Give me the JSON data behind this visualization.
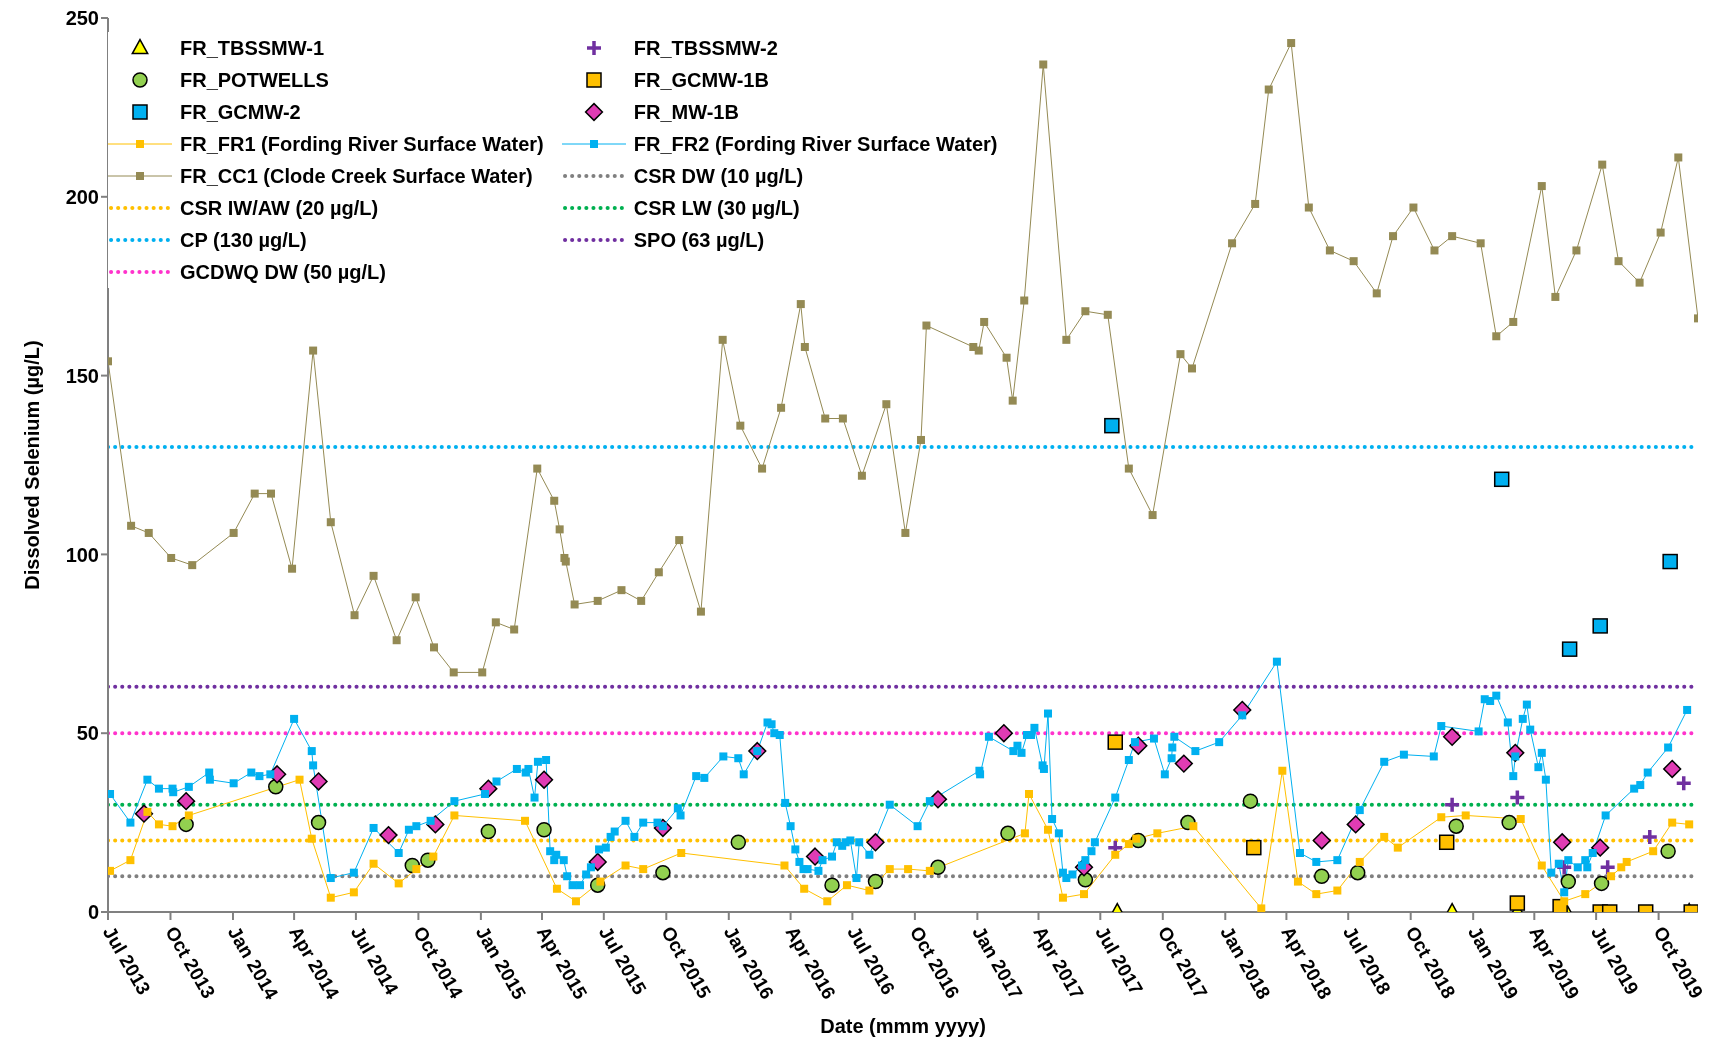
{
  "chart_data": {
    "type": "line",
    "xlabel": "Date (mmm yyyy)",
    "ylabel": "Dissolved Selenium (µg/L)",
    "xlim": [
      "2013-07-01",
      "2019-11-28"
    ],
    "xticks": [
      {
        "value": "2013-07-01",
        "label": "Jul 2013"
      },
      {
        "value": "2013-10-01",
        "label": "Oct 2013"
      },
      {
        "value": "2014-01-01",
        "label": "Jan 2014"
      },
      {
        "value": "2014-04-01",
        "label": "Apr 2014"
      },
      {
        "value": "2014-07-01",
        "label": "Jul 2014"
      },
      {
        "value": "2014-10-01",
        "label": "Oct 2014"
      },
      {
        "value": "2015-01-01",
        "label": "Jan 2015"
      },
      {
        "value": "2015-04-01",
        "label": "Apr 2015"
      },
      {
        "value": "2015-07-01",
        "label": "Jul 2015"
      },
      {
        "value": "2015-10-01",
        "label": "Oct 2015"
      },
      {
        "value": "2016-01-01",
        "label": "Jan 2016"
      },
      {
        "value": "2016-04-01",
        "label": "Apr 2016"
      },
      {
        "value": "2016-07-01",
        "label": "Jul 2016"
      },
      {
        "value": "2016-10-01",
        "label": "Oct 2016"
      },
      {
        "value": "2017-01-01",
        "label": "Jan 2017"
      },
      {
        "value": "2017-04-01",
        "label": "Apr 2017"
      },
      {
        "value": "2017-07-01",
        "label": "Jul 2017"
      },
      {
        "value": "2017-10-01",
        "label": "Oct 2017"
      },
      {
        "value": "2018-01-01",
        "label": "Jan 2018"
      },
      {
        "value": "2018-04-01",
        "label": "Apr 2018"
      },
      {
        "value": "2018-07-01",
        "label": "Jul 2018"
      },
      {
        "value": "2018-10-01",
        "label": "Oct 2018"
      },
      {
        "value": "2019-01-01",
        "label": "Jan 2019"
      },
      {
        "value": "2019-04-01",
        "label": "Apr 2019"
      },
      {
        "value": "2019-07-01",
        "label": "Jul 2019"
      },
      {
        "value": "2019-10-01",
        "label": "Oct 2019"
      }
    ],
    "ylim": [
      0,
      250
    ],
    "yticks": [
      0,
      50,
      100,
      150,
      200,
      250
    ],
    "grid": false,
    "legend": "top left",
    "series": [
      {
        "name": "FR_TBSSMW-1",
        "type": "scatter",
        "marker": "triangle",
        "color": "#ffff00",
        "x": [
          "2017-07-26",
          "2018-12-01",
          "2019-03-07",
          "2019-05-18",
          "2019-11-15"
        ],
        "values": [
          0,
          0,
          0,
          0,
          0
        ]
      },
      {
        "name": "FR_TBSSMW-2",
        "type": "scatter",
        "marker": "cross",
        "color": "#7030a0",
        "x": [
          "2017-07-23",
          "2018-12-01",
          "2019-03-07",
          "2019-05-15",
          "2019-07-18",
          "2019-09-18",
          "2019-11-07"
        ],
        "values": [
          18,
          30,
          32,
          12.5,
          12.5,
          21,
          36
        ]
      },
      {
        "name": "FR_POTWELLS",
        "type": "scatter",
        "marker": "circle",
        "color": "#92d050",
        "x": [
          "2013-10-24",
          "2014-03-05",
          "2014-05-07",
          "2014-09-22",
          "2014-10-15",
          "2015-01-12",
          "2015-04-04",
          "2015-06-22",
          "2015-09-26",
          "2016-01-15",
          "2016-06-01",
          "2016-08-04",
          "2016-11-04",
          "2017-02-15",
          "2017-06-09",
          "2017-08-26",
          "2017-11-07",
          "2018-02-07",
          "2018-05-23",
          "2018-07-15",
          "2018-12-07",
          "2019-02-23",
          "2019-05-21",
          "2019-07-09",
          "2019-10-15"
        ],
        "values": [
          24.5,
          35,
          25,
          13,
          14.5,
          22.5,
          23,
          7.5,
          11,
          19.5,
          7.5,
          8.5,
          12.5,
          22,
          9,
          20,
          25,
          31,
          10,
          11,
          24,
          25,
          8.5,
          8,
          17
        ]
      },
      {
        "name": "FR_GCMW-1B",
        "type": "scatter",
        "marker": "square",
        "color": "#ffc000",
        "x": [
          "2017-07-23",
          "2018-02-12",
          "2018-11-23",
          "2019-03-07",
          "2019-05-09",
          "2019-07-07",
          "2019-07-21",
          "2019-09-12",
          "2019-11-18"
        ],
        "values": [
          47.5,
          18,
          19.5,
          2.5,
          1.5,
          0,
          0,
          0,
          0
        ]
      },
      {
        "name": "FR_GCMW-2",
        "type": "scatter",
        "marker": "square",
        "color": "#00b0f0",
        "x": [
          "2017-07-18",
          "2019-02-12",
          "2019-05-23",
          "2019-07-07",
          "2019-10-18"
        ],
        "values": [
          136,
          121,
          73.5,
          80,
          98
        ]
      },
      {
        "name": "FR_MW-1B",
        "type": "scatter",
        "marker": "diamond",
        "color": "#e03cb4",
        "x": [
          "2013-08-23",
          "2013-10-24",
          "2014-03-07",
          "2014-05-07",
          "2014-08-18",
          "2014-10-26",
          "2015-01-12",
          "2015-04-04",
          "2015-06-22",
          "2015-09-26",
          "2016-02-12",
          "2016-05-07",
          "2016-08-04",
          "2016-11-04",
          "2017-02-09",
          "2017-06-07",
          "2017-08-26",
          "2017-11-01",
          "2018-01-26",
          "2018-05-23",
          "2018-07-12",
          "2018-12-01",
          "2019-03-04",
          "2019-05-12",
          "2019-07-07",
          "2019-10-21"
        ],
        "values": [
          27.5,
          31,
          38.5,
          36.5,
          21.5,
          24.5,
          34.5,
          37,
          14,
          23.5,
          45,
          15.5,
          19.5,
          31.5,
          50,
          12.5,
          46.5,
          41.5,
          56.5,
          20,
          24.5,
          49,
          44.5,
          19.5,
          18,
          40
        ]
      },
      {
        "name": "FR_FR1 (Fording River Surface Water)",
        "marker": "square",
        "color": "#ffc000",
        "x": [
          "2013-07-04",
          "2013-08-03",
          "2013-08-28",
          "2013-09-14",
          "2013-10-04",
          "2013-10-28",
          "2014-04-09",
          "2014-04-27",
          "2014-05-25",
          "2014-06-28",
          "2014-07-27",
          "2014-09-02",
          "2014-09-28",
          "2014-10-23",
          "2014-11-23",
          "2015-03-07",
          "2015-04-23",
          "2015-05-21",
          "2015-06-26",
          "2015-08-02",
          "2015-08-28",
          "2015-10-23",
          "2016-03-23",
          "2016-04-21",
          "2016-05-25",
          "2016-06-23",
          "2016-07-26",
          "2016-08-25",
          "2016-09-21",
          "2016-10-23",
          "2017-03-12",
          "2017-03-18",
          "2017-04-15",
          "2017-05-07",
          "2017-06-07",
          "2017-07-23",
          "2017-08-12",
          "2017-08-23",
          "2017-09-23",
          "2017-11-15",
          "2018-02-23",
          "2018-03-26",
          "2018-04-18",
          "2018-05-15",
          "2018-06-15",
          "2018-07-18",
          "2018-08-23",
          "2018-09-12",
          "2018-11-15",
          "2018-12-21",
          "2019-03-12",
          "2019-04-12",
          "2019-05-15",
          "2019-06-15",
          "2019-07-23",
          "2019-08-07",
          "2019-08-15",
          "2019-09-23",
          "2019-10-21",
          "2019-11-15"
        ],
        "values": [
          11.5,
          14.5,
          28,
          24.5,
          24,
          27,
          37,
          20.5,
          4,
          5.5,
          13.5,
          8,
          12,
          15.5,
          27,
          25.5,
          6.5,
          3,
          8.5,
          13,
          12,
          16.5,
          13,
          6.5,
          3,
          7.5,
          6,
          12,
          12,
          11.5,
          22,
          33,
          23,
          4,
          5,
          16,
          19,
          20.5,
          22,
          24,
          1,
          39.5,
          8.5,
          5,
          6,
          14,
          21,
          18,
          26.5,
          27,
          26,
          13,
          3,
          5,
          10,
          12.5,
          14,
          17,
          25,
          24.5
        ]
      },
      {
        "name": "FR_FR2 (Fording River Surface Water)",
        "marker": "square",
        "color": "#00b0f0",
        "x": [
          "2013-07-04",
          "2013-08-03",
          "2013-08-28",
          "2013-09-14",
          "2013-10-04",
          "2013-10-05",
          "2013-10-28",
          "2013-11-27",
          "2013-11-28",
          "2014-01-02",
          "2014-01-28",
          "2014-02-09",
          "2014-02-25",
          "2014-04-01",
          "2014-04-27",
          "2014-04-29",
          "2014-05-25",
          "2014-06-28",
          "2014-07-27",
          "2014-09-02",
          "2014-09-17",
          "2014-09-28",
          "2014-10-19",
          "2014-11-23",
          "2015-01-07",
          "2015-01-24",
          "2015-02-23",
          "2015-03-08",
          "2015-03-12",
          "2015-03-21",
          "2015-03-26",
          "2015-04-07",
          "2015-04-13",
          "2015-04-19",
          "2015-04-22",
          "2015-05-03",
          "2015-05-08",
          "2015-05-16",
          "2015-05-27",
          "2015-06-05",
          "2015-06-12",
          "2015-06-24",
          "2015-07-04",
          "2015-07-11",
          "2015-07-17",
          "2015-08-02",
          "2015-08-15",
          "2015-08-28",
          "2015-09-18",
          "2015-09-26",
          "2015-10-18",
          "2015-10-22",
          "2015-11-14",
          "2015-11-26",
          "2015-12-24",
          "2016-01-15",
          "2016-01-23",
          "2016-02-12",
          "2016-02-27",
          "2016-03-04",
          "2016-03-08",
          "2016-03-16",
          "2016-03-24",
          "2016-04-01",
          "2016-04-08",
          "2016-04-14",
          "2016-04-20",
          "2016-04-26",
          "2016-05-12",
          "2016-05-18",
          "2016-06-01",
          "2016-06-08",
          "2016-06-16",
          "2016-06-21",
          "2016-06-28",
          "2016-07-07",
          "2016-07-11",
          "2016-07-26",
          "2016-08-25",
          "2016-10-05",
          "2016-10-23",
          "2017-01-04",
          "2017-01-05",
          "2017-01-18",
          "2017-02-23",
          "2017-03-01",
          "2017-03-07",
          "2017-03-15",
          "2017-03-21",
          "2017-03-26",
          "2017-04-07",
          "2017-04-09",
          "2017-04-15",
          "2017-04-21",
          "2017-05-01",
          "2017-05-07",
          "2017-05-12",
          "2017-05-21",
          "2017-06-04",
          "2017-06-09",
          "2017-06-18",
          "2017-06-23",
          "2017-07-23",
          "2017-08-12",
          "2017-08-21",
          "2017-09-18",
          "2017-10-04",
          "2017-10-14",
          "2017-10-15",
          "2017-10-18",
          "2017-11-18",
          "2017-12-23",
          "2018-01-26",
          "2018-03-18",
          "2018-04-21",
          "2018-05-15",
          "2018-06-15",
          "2018-07-18",
          "2018-08-23",
          "2018-09-21",
          "2018-11-04",
          "2018-11-15",
          "2019-01-09",
          "2019-01-18",
          "2019-01-26",
          "2019-02-04",
          "2019-02-21",
          "2019-03-01",
          "2019-03-04",
          "2019-03-15",
          "2019-03-21",
          "2019-03-26",
          "2019-04-07",
          "2019-04-12",
          "2019-04-18",
          "2019-04-26",
          "2019-05-07",
          "2019-05-15",
          "2019-05-21",
          "2019-06-04",
          "2019-06-15",
          "2019-06-18",
          "2019-06-26",
          "2019-07-15",
          "2019-08-26",
          "2019-09-04",
          "2019-09-15",
          "2019-10-15",
          "2019-11-12"
        ],
        "values": [
          33,
          25,
          37,
          34.5,
          34.5,
          33.5,
          35,
          39,
          37,
          36,
          39,
          38,
          38.5,
          54,
          45,
          41,
          9.5,
          11,
          23.5,
          16.5,
          23,
          24,
          25.5,
          31,
          33,
          36.5,
          40,
          39,
          40,
          32,
          42,
          42.5,
          17,
          14.5,
          16,
          14.5,
          10,
          7.5,
          7.5,
          10.5,
          12.5,
          17.5,
          18,
          21,
          22.5,
          25.5,
          21,
          25,
          25,
          24,
          29,
          27,
          38,
          37.5,
          43.5,
          43,
          38.5,
          45,
          53,
          52.5,
          50,
          49.5,
          30.5,
          24,
          17.5,
          14,
          12,
          12,
          11.5,
          14.5,
          15.5,
          19.5,
          18.5,
          19.5,
          20,
          9.5,
          19.5,
          16,
          30,
          24,
          31,
          39.5,
          38.5,
          49,
          45,
          46.5,
          44.5,
          49.5,
          49.5,
          51.5,
          41,
          40,
          55.5,
          26,
          22,
          11,
          9.5,
          10.5,
          13,
          14.5,
          17,
          19.5,
          32,
          42.5,
          47.5,
          48.5,
          38.5,
          43,
          46,
          49,
          45,
          47.5,
          55,
          70,
          16.5,
          14,
          14.5,
          28.5,
          42,
          44,
          43.5,
          52,
          50.5,
          59.5,
          59,
          60.5,
          53,
          38,
          43.5,
          54,
          58,
          51,
          40.5,
          44.5,
          37,
          11,
          13.5,
          5.5,
          14.5,
          12.5,
          14.5,
          12.5,
          16.5,
          27,
          34.5,
          35.5,
          39,
          46,
          56.5
        ]
      },
      {
        "name": "FR_CC1 (Clode Creek Surface Water)",
        "marker": "square",
        "color": "#948a54",
        "x": [
          "2013-07-01",
          "2013-08-04",
          "2013-08-30",
          "2013-10-02",
          "2013-11-02",
          "2014-01-02",
          "2014-02-02",
          "2014-02-26",
          "2014-03-29",
          "2014-04-29",
          "2014-05-25",
          "2014-06-29",
          "2014-07-27",
          "2014-08-30",
          "2014-09-27",
          "2014-10-24",
          "2014-11-22",
          "2015-01-03",
          "2015-01-23",
          "2015-02-19",
          "2015-03-25",
          "2015-04-19",
          "2015-04-27",
          "2015-05-04",
          "2015-05-06",
          "2015-05-19",
          "2015-06-22",
          "2015-07-27",
          "2015-08-25",
          "2015-09-20",
          "2015-10-20",
          "2015-11-21",
          "2015-12-23",
          "2016-01-18",
          "2016-02-19",
          "2016-03-18",
          "2016-04-16",
          "2016-04-22",
          "2016-05-22",
          "2016-06-17",
          "2016-07-15",
          "2016-08-20",
          "2016-09-17",
          "2016-10-10",
          "2016-10-18",
          "2016-12-26",
          "2017-01-03",
          "2017-01-11",
          "2017-02-13",
          "2017-02-22",
          "2017-03-11",
          "2017-04-08",
          "2017-05-12",
          "2017-06-09",
          "2017-07-12",
          "2017-08-12",
          "2017-09-16",
          "2017-10-27",
          "2017-11-13",
          "2018-01-11",
          "2018-02-14",
          "2018-03-06",
          "2018-04-08",
          "2018-05-04",
          "2018-06-04",
          "2018-07-09",
          "2018-08-12",
          "2018-09-05",
          "2018-10-05",
          "2018-11-05",
          "2018-12-01",
          "2019-01-12",
          "2019-02-04",
          "2019-03-01",
          "2019-04-12",
          "2019-05-02",
          "2019-06-02",
          "2019-07-10",
          "2019-08-03",
          "2019-09-03",
          "2019-10-04",
          "2019-10-30",
          "2019-11-28"
        ],
        "values": [
          154,
          108,
          106,
          99,
          97,
          106,
          117,
          117,
          96,
          157,
          109,
          83,
          94,
          76,
          88,
          74,
          67,
          67,
          81,
          79,
          124,
          115,
          107,
          99,
          98,
          86,
          87,
          90,
          87,
          95,
          104,
          84,
          160,
          136,
          124,
          141,
          170,
          158,
          138,
          138,
          122,
          142,
          106,
          132,
          164,
          158,
          157,
          165,
          155,
          143,
          171,
          237,
          160,
          168,
          167,
          124,
          111,
          156,
          152,
          187,
          198,
          230,
          243,
          197,
          185,
          182,
          173,
          189,
          197,
          185,
          189,
          187,
          161,
          165,
          203,
          172,
          185,
          209,
          182,
          176,
          190,
          211,
          166
        ]
      }
    ],
    "ref_lines": [
      {
        "axis": "y",
        "value": 10,
        "label": "CSR DW (10 µg/L)",
        "color": "#808080",
        "line_style": "dotted"
      },
      {
        "axis": "y",
        "value": 20,
        "label": "CSR IW/AW (20 µg/L)",
        "color": "#ffc000",
        "line_style": "dotted"
      },
      {
        "axis": "y",
        "value": 30,
        "label": "CSR LW (30 µg/L)",
        "color": "#00b050",
        "line_style": "dotted"
      },
      {
        "axis": "y",
        "value": 130,
        "label": "CP (130 µg/L)",
        "color": "#00b0f0",
        "line_style": "dotted"
      },
      {
        "axis": "y",
        "value": 63,
        "label": "SPO (63 µg/L)",
        "color": "#7030a0",
        "line_style": "dotted"
      },
      {
        "axis": "y",
        "value": 50,
        "label": "GCDWQ DW (50 µg/L)",
        "color": "#ff33cc",
        "line_style": "dotted"
      }
    ]
  }
}
